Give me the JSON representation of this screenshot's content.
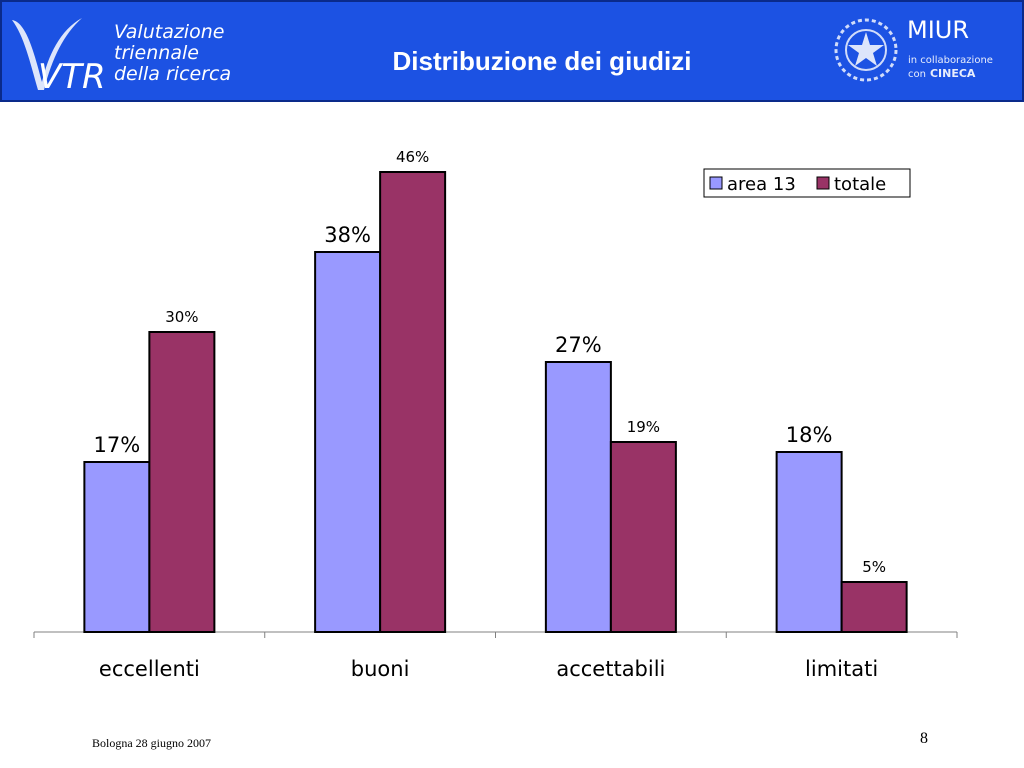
{
  "header": {
    "logo_mark": "VTR",
    "logo_lines": [
      "Valutazione",
      "triennale",
      "della ricerca"
    ],
    "title": "Distribuzione dei giudizi",
    "org": "MIUR",
    "collab_line1": "in collaborazione",
    "collab_line2": "con",
    "collab_partner": "CINECA",
    "emblem_icon": "italian-republic-emblem-icon"
  },
  "chart_data": {
    "type": "bar",
    "categories": [
      "eccellenti",
      "buoni",
      "accettabili",
      "limitati"
    ],
    "series": [
      {
        "name": "area 13",
        "values": [
          17,
          38,
          27,
          18
        ],
        "labels": [
          "17%",
          "38%",
          "27%",
          "18%"
        ],
        "color": "#9999ff"
      },
      {
        "name": "totale",
        "values": [
          30,
          46,
          19,
          5
        ],
        "labels": [
          "30%",
          "46%",
          "19%",
          "5%"
        ],
        "color": "#993366"
      }
    ],
    "ylim": [
      0,
      50
    ],
    "legend": "top-right",
    "grid": false
  },
  "footer": {
    "left": "Bologna 28 giugno 2007",
    "page": "8"
  },
  "colors": {
    "header_bg": "#1c52e3",
    "area13": "#9999ff",
    "totale": "#993366"
  }
}
